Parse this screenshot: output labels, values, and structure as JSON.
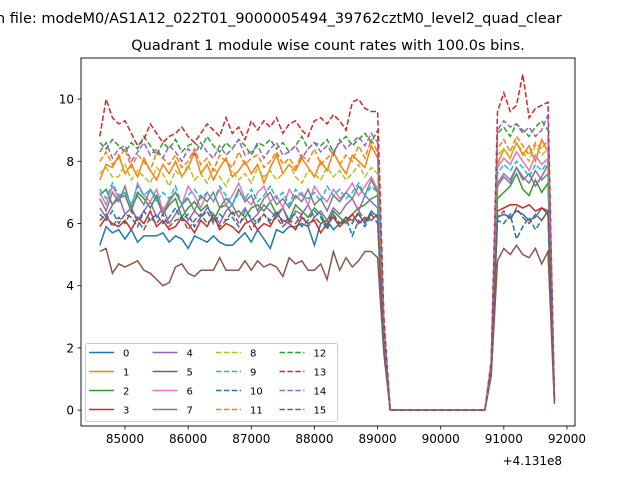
{
  "chart_data": {
    "type": "line",
    "suptitle": "n file: modeM0/AS1A12_022T01_9000005494_39762cztM0_level2_quad_clear",
    "title": "Quadrant 1 module wise count rates with 100.0s bins.",
    "xlabel": "",
    "ylabel": "",
    "x_offset_label": "+4.131e8",
    "xlim": [
      84303,
      92127
    ],
    "ylim": [
      -0.51,
      11.32
    ],
    "xticks": [
      85000,
      86000,
      87000,
      88000,
      89000,
      90000,
      91000,
      92000
    ],
    "yticks": [
      0,
      2,
      4,
      6,
      8,
      10
    ],
    "legend_placement": "lower-left",
    "legend_columns": 4,
    "x_start": 84600,
    "x_step": 100,
    "series": [
      {
        "name": "0",
        "color": "#1f77b4",
        "dash": false,
        "values": [
          5.3,
          5.9,
          5.7,
          5.8,
          5.5,
          5.8,
          5.4,
          5.6,
          5.6,
          5.6,
          5.7,
          5.4,
          5.6,
          5.5,
          5.2,
          5.6,
          5.5,
          5.4,
          5.6,
          5.4,
          5.3,
          5.3,
          5.5,
          5.7,
          5.4,
          5.8,
          5.5,
          5.2,
          5.8,
          5.7,
          5.9,
          5.9,
          6.0,
          5.9,
          5.3,
          6.0,
          6.1,
          5.8,
          6.0,
          6.2,
          6.1,
          6.3,
          6.0,
          6.4,
          6.2,
          2.0,
          0,
          0,
          0,
          0,
          0,
          0,
          0,
          0,
          0,
          0,
          0,
          0,
          0,
          0,
          0,
          0,
          1.2,
          6.2,
          6.3,
          6.2,
          6.4,
          6.3,
          6.1,
          6.2,
          6.5,
          6.3,
          0.3
        ]
      },
      {
        "name": "1",
        "color": "#ff7f0e",
        "dash": false,
        "values": [
          7.4,
          7.9,
          7.8,
          8.2,
          7.6,
          7.9,
          7.5,
          8.1,
          7.7,
          7.4,
          7.9,
          7.6,
          8.0,
          7.5,
          7.8,
          8.3,
          7.6,
          7.9,
          7.4,
          7.8,
          8.1,
          7.5,
          7.7,
          8.0,
          7.6,
          7.9,
          7.3,
          7.8,
          8.2,
          7.6,
          7.9,
          7.7,
          8.1,
          7.8,
          7.5,
          8.0,
          7.7,
          8.3,
          7.9,
          7.6,
          8.2,
          8.0,
          7.8,
          8.5,
          8.1,
          2.5,
          0,
          0,
          0,
          0,
          0,
          0,
          0,
          0,
          0,
          0,
          0,
          0,
          0,
          0,
          0,
          0,
          1.4,
          7.9,
          8.4,
          8.1,
          8.6,
          8.2,
          8.5,
          8.0,
          8.7,
          8.3,
          0.4
        ]
      },
      {
        "name": "2",
        "color": "#2ca02c",
        "dash": false,
        "values": [
          6.9,
          7.1,
          6.6,
          6.8,
          6.9,
          6.4,
          7.0,
          6.8,
          6.5,
          6.9,
          6.3,
          6.6,
          6.8,
          6.2,
          6.5,
          6.7,
          6.4,
          6.6,
          6.1,
          6.5,
          6.6,
          6.3,
          6.4,
          6.2,
          6.5,
          6.6,
          6.4,
          6.7,
          6.3,
          6.5,
          6.1,
          6.6,
          6.4,
          6.2,
          6.5,
          6.3,
          5.9,
          6.4,
          6.2,
          6.0,
          6.3,
          6.5,
          6.6,
          6.8,
          6.9,
          2.2,
          0,
          0,
          0,
          0,
          0,
          0,
          0,
          0,
          0,
          0,
          0,
          0,
          0,
          0,
          0,
          0,
          1.3,
          6.8,
          7.0,
          7.2,
          7.6,
          7.1,
          6.9,
          7.4,
          7.0,
          7.3,
          0.3
        ]
      },
      {
        "name": "3",
        "color": "#d62728",
        "dash": false,
        "values": [
          5.9,
          6.2,
          6.0,
          5.9,
          6.1,
          5.8,
          6.2,
          6.0,
          6.4,
          5.9,
          6.1,
          5.8,
          5.9,
          6.2,
          6.0,
          5.7,
          6.1,
          5.9,
          6.3,
          5.8,
          6.0,
          5.9,
          5.7,
          6.0,
          6.1,
          5.8,
          6.0,
          5.9,
          6.3,
          6.1,
          6.0,
          5.8,
          6.2,
          6.0,
          6.1,
          5.7,
          6.0,
          6.2,
          5.9,
          6.1,
          6.3,
          6.0,
          6.2,
          6.1,
          6.3,
          2.1,
          0,
          0,
          0,
          0,
          0,
          0,
          0,
          0,
          0,
          0,
          0,
          0,
          0,
          0,
          0,
          0,
          1.2,
          6.4,
          6.5,
          6.6,
          6.6,
          6.5,
          6.6,
          6.4,
          6.5,
          6.4,
          0.3
        ]
      },
      {
        "name": "4",
        "color": "#9467bd",
        "dash": false,
        "values": [
          6.5,
          6.2,
          6.6,
          6.9,
          6.3,
          6.5,
          6.1,
          6.4,
          6.7,
          6.2,
          6.5,
          6.0,
          6.3,
          6.6,
          6.1,
          6.4,
          6.2,
          6.5,
          6.3,
          6.0,
          6.4,
          6.6,
          6.2,
          6.5,
          6.1,
          6.3,
          6.6,
          6.4,
          6.2,
          6.5,
          6.0,
          6.4,
          6.3,
          6.6,
          6.2,
          6.4,
          6.1,
          6.5,
          6.3,
          6.6,
          6.8,
          6.4,
          6.9,
          6.7,
          6.5,
          2.3,
          0,
          0,
          0,
          0,
          0,
          0,
          0,
          0,
          0,
          0,
          0,
          0,
          0,
          0,
          0,
          0,
          1.3,
          7.2,
          7.5,
          7.3,
          7.8,
          7.4,
          7.6,
          7.2,
          7.5,
          7.9,
          0.3
        ]
      },
      {
        "name": "5",
        "color": "#8c564b",
        "dash": false,
        "values": [
          5.1,
          5.2,
          4.4,
          4.7,
          4.6,
          4.7,
          4.8,
          4.5,
          4.4,
          4.2,
          4.0,
          4.1,
          4.6,
          4.7,
          4.4,
          4.3,
          4.5,
          4.5,
          4.5,
          4.9,
          4.5,
          4.5,
          4.5,
          4.8,
          4.5,
          4.8,
          4.6,
          4.7,
          4.6,
          4.3,
          4.9,
          4.7,
          4.8,
          4.5,
          4.5,
          4.7,
          4.2,
          5.1,
          4.5,
          4.9,
          4.6,
          4.8,
          5.1,
          5.1,
          4.9,
          1.8,
          0,
          0,
          0,
          0,
          0,
          0,
          0,
          0,
          0,
          0,
          0,
          0,
          0,
          0,
          0,
          0,
          1.1,
          4.8,
          5.2,
          5.0,
          5.3,
          5.0,
          4.9,
          5.2,
          4.7,
          5.1,
          0.2
        ]
      },
      {
        "name": "6",
        "color": "#e377c2",
        "dash": false,
        "values": [
          7.0,
          6.6,
          7.2,
          6.8,
          7.0,
          6.5,
          7.3,
          6.9,
          6.7,
          7.1,
          6.4,
          6.8,
          7.0,
          6.6,
          7.2,
          6.9,
          6.5,
          7.0,
          6.7,
          7.1,
          6.6,
          6.9,
          7.3,
          6.8,
          6.6,
          7.0,
          7.2,
          6.7,
          6.9,
          6.5,
          7.1,
          6.8,
          7.0,
          6.6,
          7.2,
          6.9,
          6.7,
          7.1,
          6.8,
          7.0,
          7.3,
          6.9,
          7.2,
          7.5,
          7.1,
          2.4,
          0,
          0,
          0,
          0,
          0,
          0,
          0,
          0,
          0,
          0,
          0,
          0,
          0,
          0,
          0,
          0,
          1.3,
          7.8,
          8.1,
          7.9,
          8.3,
          8.0,
          7.7,
          8.2,
          7.9,
          8.1,
          0.3
        ]
      },
      {
        "name": "7",
        "color": "#7f7f7f",
        "dash": false,
        "values": [
          6.8,
          6.4,
          7.0,
          6.7,
          7.2,
          6.5,
          6.9,
          6.6,
          7.1,
          6.8,
          6.3,
          6.7,
          7.0,
          6.6,
          6.8,
          6.4,
          6.9,
          6.7,
          7.0,
          6.5,
          6.8,
          6.6,
          7.1,
          6.7,
          6.9,
          6.4,
          6.8,
          7.0,
          6.6,
          6.8,
          6.5,
          6.9,
          6.7,
          7.1,
          6.6,
          6.8,
          6.4,
          6.9,
          6.7,
          7.0,
          6.8,
          7.2,
          6.9,
          7.4,
          7.0,
          2.3,
          0,
          0,
          0,
          0,
          0,
          0,
          0,
          0,
          0,
          0,
          0,
          0,
          0,
          0,
          0,
          0,
          1.3,
          7.3,
          7.6,
          7.4,
          7.8,
          7.5,
          7.3,
          7.7,
          7.4,
          7.6,
          0.3
        ]
      },
      {
        "name": "8",
        "color": "#bcbd22",
        "dash": true,
        "values": [
          7.6,
          7.8,
          7.5,
          7.5,
          7.9,
          7.4,
          7.7,
          7.5,
          7.3,
          7.8,
          7.6,
          7.2,
          7.7,
          7.5,
          7.9,
          7.4,
          7.6,
          7.3,
          7.8,
          7.5,
          7.2,
          7.7,
          7.4,
          7.6,
          7.3,
          7.8,
          7.5,
          7.7,
          7.4,
          7.6,
          7.9,
          7.5,
          7.3,
          7.7,
          7.6,
          7.4,
          7.8,
          7.5,
          7.7,
          7.4,
          7.6,
          7.9,
          7.5,
          7.8,
          7.6,
          2.5,
          0,
          0,
          0,
          0,
          0,
          0,
          0,
          0,
          0,
          0,
          0,
          0,
          0,
          0,
          0,
          0,
          1.4,
          8.2,
          8.4,
          8.1,
          8.6,
          8.3,
          8.0,
          8.5,
          8.2,
          8.4,
          0.3
        ]
      },
      {
        "name": "9",
        "color": "#17becf",
        "dash": true,
        "values": [
          7.1,
          6.8,
          7.3,
          6.9,
          7.0,
          6.6,
          7.2,
          6.9,
          7.1,
          6.7,
          7.0,
          6.8,
          7.2,
          6.6,
          6.9,
          7.1,
          6.8,
          7.0,
          6.7,
          7.2,
          6.9,
          6.6,
          7.0,
          6.8,
          7.1,
          6.7,
          6.9,
          7.2,
          6.8,
          7.0,
          6.6,
          7.1,
          6.9,
          6.8,
          7.0,
          6.7,
          7.2,
          6.9,
          7.1,
          6.8,
          7.0,
          7.3,
          6.9,
          7.2,
          7.0,
          2.4,
          0,
          0,
          0,
          0,
          0,
          0,
          0,
          0,
          0,
          0,
          0,
          0,
          0,
          0,
          0,
          0,
          1.3,
          7.6,
          7.9,
          7.7,
          8.0,
          7.8,
          7.5,
          7.9,
          7.7,
          8.0,
          0.3
        ]
      },
      {
        "name": "10",
        "color": "#1f77b4",
        "dash": true,
        "values": [
          6.3,
          6.1,
          6.4,
          6.0,
          6.3,
          6.2,
          5.9,
          6.4,
          6.1,
          6.3,
          6.0,
          6.2,
          6.5,
          6.1,
          6.3,
          5.9,
          6.2,
          6.4,
          6.0,
          6.3,
          6.1,
          6.2,
          5.9,
          6.4,
          6.2,
          6.0,
          6.3,
          6.1,
          6.4,
          6.0,
          6.2,
          6.3,
          5.9,
          6.1,
          6.4,
          6.2,
          5.8,
          6.3,
          6.0,
          6.2,
          5.6,
          6.1,
          5.9,
          6.3,
          6.0,
          2.0,
          0,
          0,
          0,
          0,
          0,
          0,
          0,
          0,
          0,
          0,
          0,
          0,
          0,
          0,
          0,
          0,
          1.2,
          6.1,
          6.0,
          6.3,
          5.5,
          5.9,
          6.2,
          5.8,
          6.1,
          6.4,
          0.3
        ]
      },
      {
        "name": "11",
        "color": "#ff7f0e",
        "dash": true,
        "values": [
          8.0,
          8.3,
          7.9,
          8.1,
          8.4,
          7.8,
          8.2,
          8.0,
          7.7,
          8.3,
          8.1,
          7.9,
          8.2,
          7.8,
          8.0,
          8.4,
          7.9,
          8.1,
          7.7,
          8.2,
          8.0,
          7.8,
          8.3,
          7.9,
          8.1,
          8.2,
          7.8,
          8.0,
          8.3,
          7.9,
          8.1,
          7.8,
          8.2,
          8.0,
          8.4,
          7.9,
          8.1,
          8.3,
          7.9,
          8.2,
          8.0,
          8.5,
          8.1,
          8.7,
          8.3,
          2.6,
          0,
          0,
          0,
          0,
          0,
          0,
          0,
          0,
          0,
          0,
          0,
          0,
          0,
          0,
          0,
          0,
          1.4,
          8.4,
          8.7,
          8.3,
          8.8,
          8.5,
          8.2,
          8.6,
          8.4,
          8.7,
          0.4
        ]
      },
      {
        "name": "12",
        "color": "#2ca02c",
        "dash": true,
        "values": [
          8.6,
          8.4,
          8.7,
          8.5,
          8.3,
          8.6,
          8.4,
          8.8,
          8.5,
          8.2,
          8.6,
          8.4,
          8.7,
          8.3,
          8.5,
          8.6,
          8.4,
          8.8,
          8.5,
          8.3,
          8.6,
          8.4,
          8.7,
          8.5,
          8.2,
          8.6,
          8.5,
          8.7,
          8.4,
          8.6,
          8.3,
          8.5,
          8.8,
          8.4,
          8.6,
          8.5,
          8.7,
          8.3,
          8.6,
          8.8,
          8.5,
          8.7,
          8.9,
          8.6,
          9.0,
          2.8,
          0,
          0,
          0,
          0,
          0,
          0,
          0,
          0,
          0,
          0,
          0,
          0,
          0,
          0,
          0,
          0,
          1.5,
          8.9,
          9.1,
          8.8,
          9.2,
          9.0,
          8.8,
          9.1,
          9.3,
          9.0,
          0.4
        ]
      },
      {
        "name": "13",
        "color": "#d62728",
        "dash": true,
        "values": [
          8.8,
          10.0,
          9.4,
          9.2,
          9.3,
          8.9,
          8.5,
          8.7,
          9.2,
          8.9,
          8.6,
          8.8,
          8.9,
          9.1,
          8.8,
          8.6,
          8.9,
          9.2,
          9.0,
          8.8,
          9.4,
          8.9,
          9.1,
          8.7,
          9.3,
          9.0,
          9.3,
          9.1,
          9.4,
          8.9,
          9.2,
          9.3,
          9.0,
          8.8,
          9.3,
          9.4,
          9.2,
          9.5,
          9.3,
          9.0,
          9.9,
          10.0,
          9.7,
          9.6,
          9.6,
          3.0,
          0,
          0,
          0,
          0,
          0,
          0,
          0,
          0,
          0,
          0,
          0,
          0,
          0,
          0,
          0,
          0,
          1.6,
          9.6,
          10.2,
          9.6,
          9.8,
          10.8,
          9.4,
          9.7,
          9.8,
          9.9,
          0.4
        ]
      },
      {
        "name": "14",
        "color": "#9467bd",
        "dash": true,
        "values": [
          8.3,
          8.6,
          8.1,
          8.4,
          8.5,
          8.0,
          8.3,
          8.6,
          8.2,
          8.4,
          8.1,
          8.5,
          8.3,
          8.0,
          8.4,
          8.2,
          8.6,
          8.3,
          8.1,
          8.5,
          8.2,
          8.4,
          8.7,
          8.2,
          8.3,
          8.5,
          8.1,
          8.4,
          8.6,
          8.2,
          8.3,
          8.5,
          8.1,
          8.4,
          8.6,
          8.3,
          8.5,
          8.2,
          8.7,
          8.4,
          8.6,
          8.8,
          8.5,
          8.9,
          8.6,
          2.7,
          0,
          0,
          0,
          0,
          0,
          0,
          0,
          0,
          0,
          0,
          0,
          0,
          0,
          0,
          0,
          0,
          1.5,
          9.0,
          9.3,
          9.1,
          9.2,
          8.9,
          9.1,
          8.8,
          9.0,
          9.5,
          0.4
        ]
      },
      {
        "name": "15",
        "color": "#8c564b",
        "dash": true,
        "values": [
          6.1,
          6.3,
          5.9,
          6.2,
          6.0,
          6.4,
          6.1,
          5.8,
          6.2,
          6.0,
          6.3,
          5.9,
          6.1,
          6.2,
          5.8,
          6.1,
          6.3,
          6.0,
          6.2,
          5.9,
          6.1,
          6.4,
          6.0,
          6.2,
          5.8,
          6.1,
          6.3,
          6.0,
          6.2,
          5.9,
          6.1,
          6.0,
          6.3,
          5.9,
          6.2,
          6.0,
          6.1,
          6.3,
          5.9,
          6.2,
          6.0,
          6.4,
          6.1,
          6.3,
          6.2,
          2.1,
          0,
          0,
          0,
          0,
          0,
          0,
          0,
          0,
          0,
          0,
          0,
          0,
          0,
          0,
          0,
          0,
          1.2,
          6.2,
          6.4,
          6.1,
          6.5,
          6.2,
          6.0,
          6.3,
          6.1,
          6.4,
          0.3
        ]
      }
    ]
  }
}
